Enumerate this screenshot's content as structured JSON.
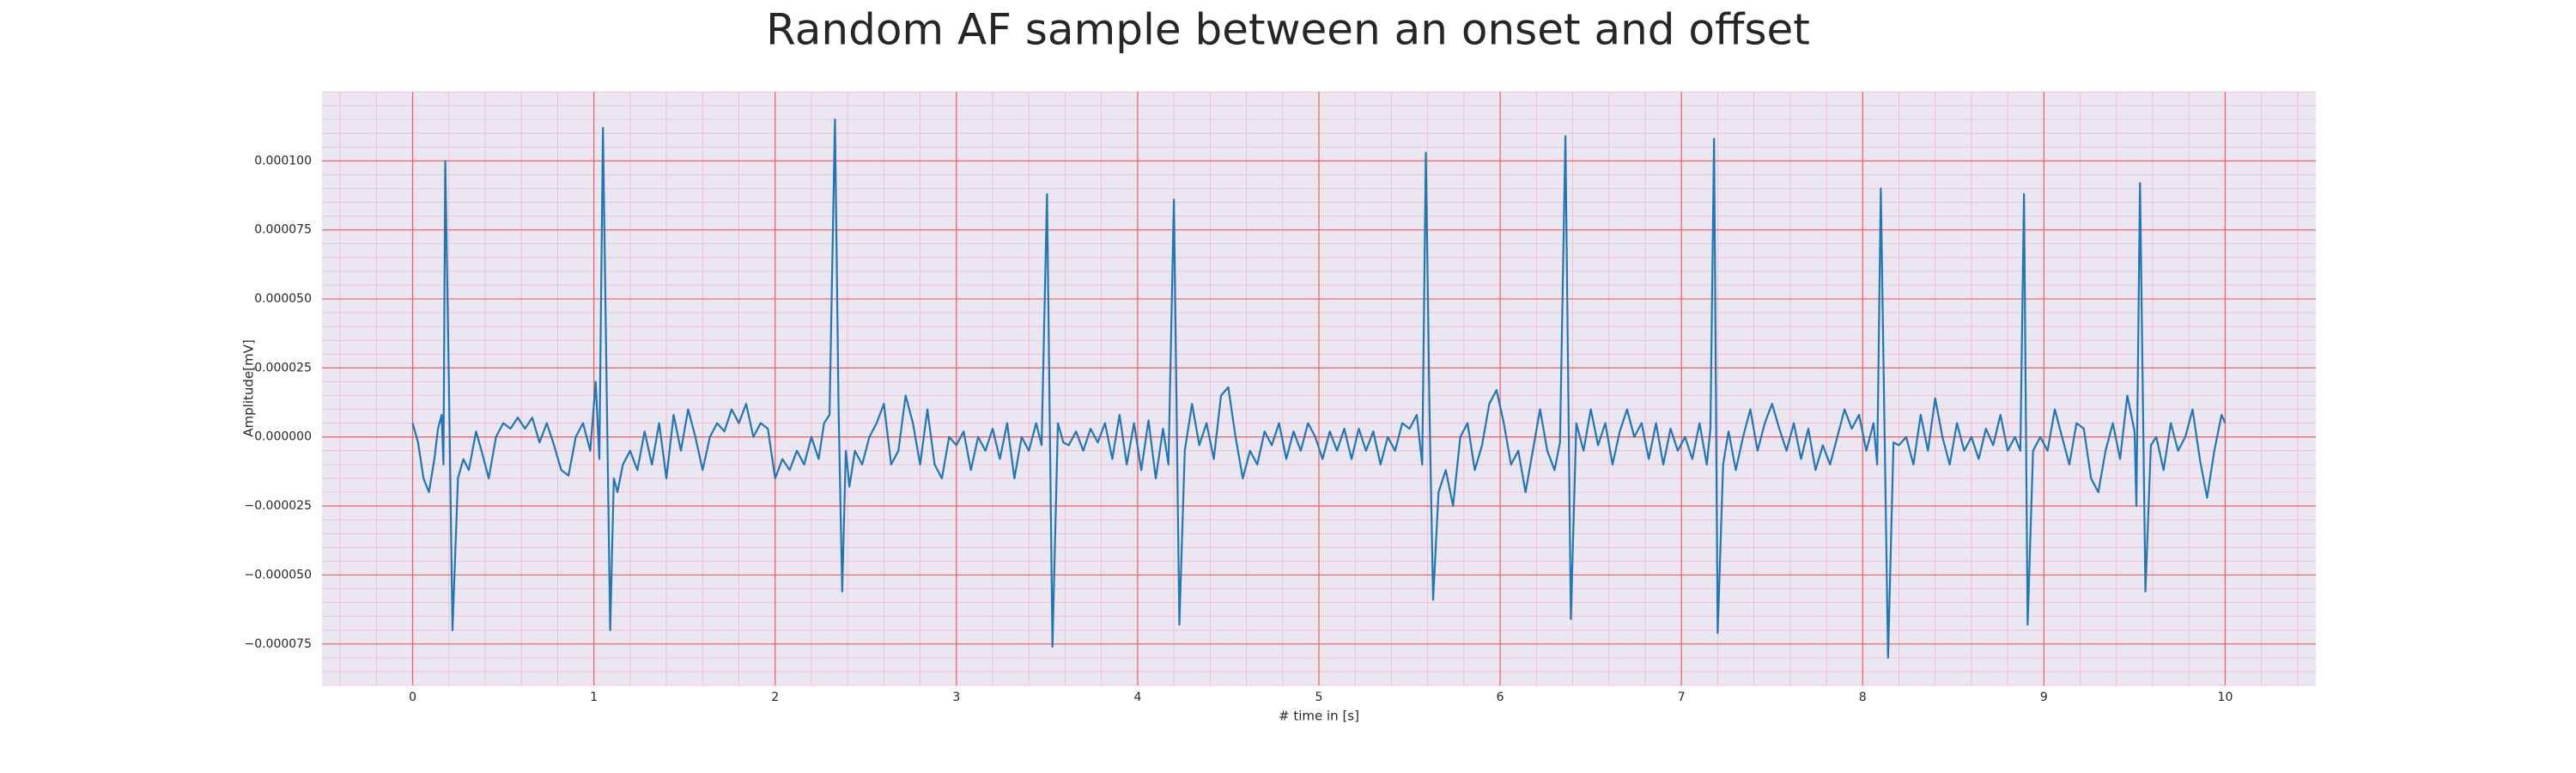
{
  "chart_data": {
    "type": "line",
    "title": "Random AF sample between an onset and offset",
    "x_label": "# time in [s]",
    "y_label": "Amplitude[mV]",
    "color": "#1f77b4",
    "background": "#eae6f2",
    "grid": true,
    "grid_color": "#f25c5c",
    "minor_grid": true,
    "minor_grid_color": "#f4b8c4",
    "xlim": [
      -0.5,
      10.5
    ],
    "ylim": [
      -9e-05,
      0.000125
    ],
    "xticks": [
      0,
      1,
      2,
      3,
      4,
      5,
      6,
      7,
      8,
      9,
      10
    ],
    "yticks": [
      {
        "value": -7.5e-05,
        "label": "−0.000075"
      },
      {
        "value": -5e-05,
        "label": "−0.000050"
      },
      {
        "value": -2.5e-05,
        "label": "−0.000025"
      },
      {
        "value": 0,
        "label": "0.000000"
      },
      {
        "value": 2.5e-05,
        "label": "0.000025"
      },
      {
        "value": 5e-05,
        "label": "0.000050"
      },
      {
        "value": 7.5e-05,
        "label": "0.000075"
      },
      {
        "value": 0.0001,
        "label": "0.000100"
      }
    ],
    "x": [
      0,
      0.03,
      0.06,
      0.09,
      0.12,
      0.14,
      0.16,
      0.17,
      0.18,
      0.2,
      0.22,
      0.25,
      0.28,
      0.31,
      0.35,
      0.38,
      0.42,
      0.46,
      0.5,
      0.54,
      0.58,
      0.62,
      0.66,
      0.7,
      0.74,
      0.78,
      0.82,
      0.86,
      0.9,
      0.94,
      0.98,
      1.01,
      1.03,
      1.05,
      1.07,
      1.09,
      1.11,
      1.13,
      1.16,
      1.2,
      1.24,
      1.28,
      1.32,
      1.36,
      1.4,
      1.44,
      1.48,
      1.52,
      1.56,
      1.6,
      1.64,
      1.68,
      1.72,
      1.76,
      1.8,
      1.84,
      1.88,
      1.92,
      1.96,
      2.0,
      2.04,
      2.08,
      2.12,
      2.16,
      2.2,
      2.24,
      2.27,
      2.3,
      2.33,
      2.35,
      2.37,
      2.39,
      2.41,
      2.44,
      2.48,
      2.52,
      2.56,
      2.6,
      2.64,
      2.68,
      2.72,
      2.76,
      2.8,
      2.84,
      2.88,
      2.92,
      2.96,
      3.0,
      3.04,
      3.08,
      3.12,
      3.16,
      3.2,
      3.24,
      3.28,
      3.32,
      3.36,
      3.4,
      3.44,
      3.47,
      3.5,
      3.53,
      3.56,
      3.59,
      3.62,
      3.66,
      3.7,
      3.74,
      3.78,
      3.82,
      3.86,
      3.9,
      3.94,
      3.98,
      4.02,
      4.06,
      4.1,
      4.14,
      4.17,
      4.2,
      4.23,
      4.26,
      4.3,
      4.34,
      4.38,
      4.42,
      4.46,
      4.5,
      4.54,
      4.58,
      4.62,
      4.66,
      4.7,
      4.74,
      4.78,
      4.82,
      4.86,
      4.9,
      4.94,
      4.98,
      5.02,
      5.06,
      5.1,
      5.14,
      5.18,
      5.22,
      5.26,
      5.3,
      5.34,
      5.38,
      5.42,
      5.46,
      5.5,
      5.54,
      5.57,
      5.59,
      5.61,
      5.63,
      5.66,
      5.7,
      5.74,
      5.78,
      5.82,
      5.86,
      5.9,
      5.94,
      5.98,
      6.02,
      6.06,
      6.1,
      6.14,
      6.18,
      6.22,
      6.26,
      6.3,
      6.33,
      6.36,
      6.39,
      6.42,
      6.46,
      6.5,
      6.54,
      6.58,
      6.62,
      6.66,
      6.7,
      6.74,
      6.78,
      6.82,
      6.86,
      6.9,
      6.94,
      6.98,
      7.02,
      7.06,
      7.1,
      7.14,
      7.16,
      7.18,
      7.2,
      7.23,
      7.26,
      7.3,
      7.34,
      7.38,
      7.42,
      7.46,
      7.5,
      7.54,
      7.58,
      7.62,
      7.66,
      7.7,
      7.74,
      7.78,
      7.82,
      7.86,
      7.9,
      7.94,
      7.98,
      8.02,
      8.06,
      8.08,
      8.1,
      8.12,
      8.14,
      8.17,
      8.2,
      8.24,
      8.28,
      8.32,
      8.36,
      8.4,
      8.44,
      8.48,
      8.52,
      8.56,
      8.6,
      8.64,
      8.68,
      8.72,
      8.76,
      8.8,
      8.84,
      8.87,
      8.89,
      8.91,
      8.94,
      8.98,
      9.02,
      9.06,
      9.1,
      9.14,
      9.18,
      9.22,
      9.26,
      9.3,
      9.34,
      9.38,
      9.42,
      9.46,
      9.5,
      9.51,
      9.53,
      9.56,
      9.59,
      9.62,
      9.66,
      9.7,
      9.74,
      9.78,
      9.82,
      9.86,
      9.9,
      9.94,
      9.98,
      10.0
    ],
    "values": [
      5e-06,
      -2e-06,
      -1.5e-05,
      -2e-05,
      -8e-06,
      3e-06,
      8e-06,
      -1e-05,
      0.0001,
      2e-05,
      -7e-05,
      -1.5e-05,
      -8e-06,
      -1.2e-05,
      2e-06,
      -5e-06,
      -1.5e-05,
      0,
      5e-06,
      3e-06,
      7e-06,
      3e-06,
      7e-06,
      -2e-06,
      5e-06,
      -3e-06,
      -1.2e-05,
      -1.4e-05,
      0,
      5e-06,
      -5e-06,
      2e-05,
      -8e-06,
      0.000112,
      2e-05,
      -7e-05,
      -1.5e-05,
      -2e-05,
      -1e-05,
      -5e-06,
      -1.2e-05,
      2e-06,
      -1e-05,
      5e-06,
      -1.5e-05,
      8e-06,
      -5e-06,
      1e-05,
      0,
      -1.2e-05,
      0,
      5e-06,
      2e-06,
      1e-05,
      5e-06,
      1.2e-05,
      0,
      5e-06,
      3e-06,
      -1.5e-05,
      -8e-06,
      -1.2e-05,
      -5e-06,
      -1e-05,
      0,
      -8e-06,
      5e-06,
      8e-06,
      0.000115,
      1e-05,
      -5.6e-05,
      -5e-06,
      -1.8e-05,
      -5e-06,
      -1e-05,
      0,
      5e-06,
      1.2e-05,
      -1e-05,
      -5e-06,
      1.5e-05,
      5e-06,
      -1e-05,
      1e-05,
      -1e-05,
      -1.5e-05,
      0,
      -3e-06,
      2e-06,
      -1.2e-05,
      0,
      -5e-06,
      3e-06,
      -8e-06,
      5e-06,
      -1.5e-05,
      0,
      -5e-06,
      5e-06,
      -3e-06,
      8.8e-05,
      -7.6e-05,
      5e-06,
      -2e-06,
      -3e-06,
      2e-06,
      -5e-06,
      3e-06,
      -2e-06,
      5e-06,
      -8e-06,
      8e-06,
      -1e-05,
      5e-06,
      -1.2e-05,
      6e-06,
      -1.5e-05,
      3e-06,
      -1e-05,
      8.6e-05,
      -6.8e-05,
      -5e-06,
      1.2e-05,
      -3e-06,
      5e-06,
      -8e-06,
      1.5e-05,
      1.8e-05,
      0,
      -1.5e-05,
      -5e-06,
      -1e-05,
      2e-06,
      -3e-06,
      5e-06,
      -8e-06,
      2e-06,
      -5e-06,
      5e-06,
      0,
      -8e-06,
      2e-06,
      -5e-06,
      3e-06,
      -8e-06,
      3e-06,
      -5e-06,
      2e-06,
      -1e-05,
      0,
      -5e-06,
      5e-06,
      3e-06,
      8e-06,
      -1e-05,
      0.000103,
      1e-05,
      -5.9e-05,
      -2e-05,
      -1.2e-05,
      -2.5e-05,
      0,
      5e-06,
      -1.2e-05,
      -3e-06,
      1.2e-05,
      1.7e-05,
      5e-06,
      -1e-05,
      -5e-06,
      -2e-05,
      -5e-06,
      1e-05,
      -5e-06,
      -1.2e-05,
      -2e-06,
      0.000109,
      -6.6e-05,
      5e-06,
      -5e-06,
      1e-05,
      -3e-06,
      5e-06,
      -1e-05,
      2e-06,
      1e-05,
      0,
      5e-06,
      -8e-06,
      5e-06,
      -1e-05,
      3e-06,
      -5e-06,
      0,
      -8e-06,
      5e-06,
      -1e-05,
      3e-06,
      0.000108,
      -7.1e-05,
      -1e-05,
      2e-06,
      -1.2e-05,
      0,
      1e-05,
      -5e-06,
      5e-06,
      1.2e-05,
      3e-06,
      -5e-06,
      5e-06,
      -8e-06,
      3e-06,
      -1.2e-05,
      -3e-06,
      -1e-05,
      0,
      1e-05,
      3e-06,
      8e-06,
      -5e-06,
      5e-06,
      -1e-05,
      9e-05,
      5e-06,
      -8e-05,
      -2e-06,
      -3e-06,
      0,
      -1e-05,
      8e-06,
      -5e-06,
      1.4e-05,
      0,
      -1e-05,
      5e-06,
      -5e-06,
      0,
      -8e-06,
      3e-06,
      -3e-06,
      8e-06,
      -5e-06,
      0,
      -5e-06,
      8.8e-05,
      -6.8e-05,
      -5e-06,
      0,
      -5e-06,
      1e-05,
      0,
      -1e-05,
      5e-06,
      3e-06,
      -1.5e-05,
      -2e-05,
      -5e-06,
      5e-06,
      -8e-06,
      1.5e-05,
      2e-06,
      -2.5e-05,
      9.2e-05,
      -5.6e-05,
      -3e-06,
      0,
      -1.2e-05,
      5e-06,
      -5e-06,
      0,
      1e-05,
      -8e-06,
      -2.2e-05,
      -5e-06,
      8e-06,
      5e-06
    ]
  }
}
